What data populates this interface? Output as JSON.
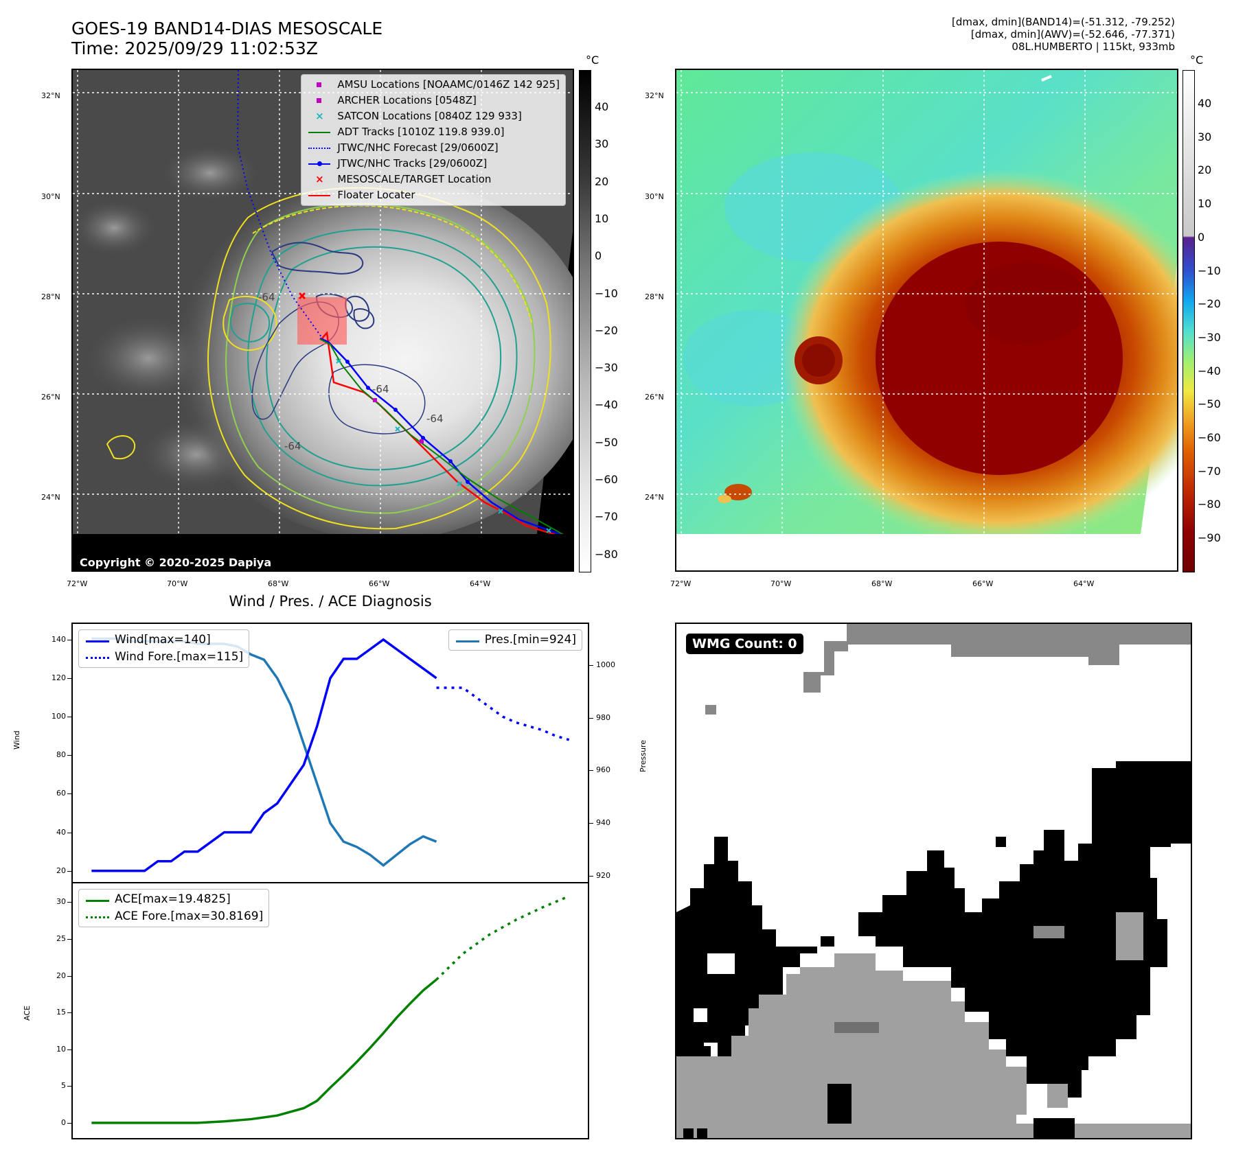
{
  "header": {
    "title_line1": "GOES-19 BAND14-DIAS MESOSCALE",
    "title_line2": "Time: 2025/09/29 11:02:53Z",
    "info_line1": "[dmax, dmin](BAND14)=(-51.312, -79.252)",
    "info_line2": "[dmax, dmin](AWV)=(-52.646, -77.371)",
    "info_line3": "08L.HUMBERTO | 115kt, 933mb"
  },
  "map": {
    "lat_labels": [
      "32°N",
      "30°N",
      "28°N",
      "26°N",
      "24°N"
    ],
    "lon_labels": [
      "72°W",
      "70°W",
      "68°W",
      "66°W",
      "64°W"
    ],
    "copyright": "Copyright © 2020-2025 Dapiya",
    "contour_labels": [
      "-64",
      "-64",
      "-64",
      "-64"
    ]
  },
  "legend": {
    "items": [
      {
        "label": "AMSU Locations [NOAAMC/0146Z 142 925]",
        "symbol": "square",
        "color": "#c000c0"
      },
      {
        "label": "ARCHER Locations [0548Z]",
        "symbol": "square",
        "color": "#c000c0"
      },
      {
        "label": "SATCON Locations [0840Z 129 933]",
        "symbol": "x",
        "color": "#18b8b8"
      },
      {
        "label": "ADT Tracks [1010Z 119.8 939.0]",
        "symbol": "line",
        "color": "#008000"
      },
      {
        "label": "JTWC/NHC Forecast [29/0600Z]",
        "symbol": "dotted",
        "color": "#0000ff"
      },
      {
        "label": "JTWC/NHC Tracks [29/0600Z]",
        "symbol": "line-dot",
        "color": "#0000ff"
      },
      {
        "label": "MESOSCALE/TARGET Location",
        "symbol": "x",
        "color": "#ff0000"
      },
      {
        "label": "Floater Locater",
        "symbol": "line",
        "color": "#ff0000"
      }
    ]
  },
  "colorbar_gray": {
    "unit": "°C",
    "ticks": [
      "40",
      "30",
      "20",
      "10",
      "0",
      "−10",
      "−20",
      "−30",
      "−40",
      "−50",
      "−60",
      "−70",
      "−80"
    ]
  },
  "colorbar_color": {
    "unit": "°C",
    "ticks": [
      "40",
      "30",
      "20",
      "10",
      "0",
      "−10",
      "−20",
      "−30",
      "−40",
      "−50",
      "−60",
      "−70",
      "−80",
      "−90"
    ]
  },
  "diagnosis": {
    "title": "Wind / Pres. / ACE Diagnosis",
    "ylabel_wind": "Wind",
    "ylabel_pres": "Pressure",
    "ylabel_ace": "ACE",
    "legend_wind": "Wind[max=140]",
    "legend_wind_fore": "Wind Fore.[max=115]",
    "legend_pres": "Pres.[min=924]",
    "legend_ace": "ACE[max=19.4825]",
    "legend_ace_fore": "ACE Fore.[max=30.8169]"
  },
  "wmg": {
    "label": "WMG Count: 0"
  },
  "chart_data": [
    {
      "type": "line",
      "title": "Wind / Pres. / ACE Diagnosis",
      "ylabel": "Wind",
      "ylim": [
        16,
        146
      ],
      "xlim": [
        -1,
        37
      ],
      "yticks": [
        20,
        40,
        60,
        80,
        100,
        120,
        140
      ],
      "series": [
        {
          "name": "Wind[max=140]",
          "color": "#0000ff",
          "style": "solid",
          "x": [
            0,
            1,
            2,
            3,
            4,
            5,
            6,
            7,
            8,
            9,
            10,
            11,
            12,
            13,
            14,
            15,
            16,
            17,
            18,
            19,
            20,
            21,
            22,
            23,
            24,
            25,
            26
          ],
          "values": [
            20,
            20,
            20,
            20,
            20,
            25,
            25,
            30,
            30,
            35,
            40,
            40,
            40,
            50,
            55,
            65,
            75,
            95,
            120,
            130,
            130,
            135,
            140,
            135,
            130,
            125,
            120
          ]
        },
        {
          "name": "Wind Fore.[max=115]",
          "color": "#0000ff",
          "style": "dotted",
          "x": [
            26,
            27,
            28,
            29,
            30,
            31,
            32,
            33,
            34,
            35,
            36
          ],
          "values": [
            115,
            115,
            115,
            110,
            105,
            100,
            97,
            95,
            93,
            90,
            88
          ]
        }
      ]
    },
    {
      "type": "line",
      "ylabel": "Pressure",
      "ylim": [
        919,
        1014
      ],
      "xlim": [
        -1,
        37
      ],
      "yticks": [
        920,
        940,
        960,
        980,
        1000
      ],
      "series": [
        {
          "name": "Pres.[min=924]",
          "color": "#1f77b4",
          "style": "solid",
          "x": [
            0,
            1,
            2,
            3,
            4,
            5,
            6,
            7,
            8,
            9,
            10,
            11,
            12,
            13,
            14,
            15,
            16,
            17,
            18,
            19,
            20,
            21,
            22,
            23,
            24,
            25,
            26
          ],
          "values": [
            1010,
            1010,
            1010,
            1009,
            1009,
            1009,
            1009,
            1009,
            1008,
            1008,
            1008,
            1007,
            1004,
            1002,
            995,
            985,
            970,
            955,
            940,
            933,
            931,
            928,
            924,
            928,
            932,
            935,
            933
          ]
        }
      ]
    },
    {
      "type": "line",
      "ylabel": "ACE",
      "ylim": [
        -1.5,
        32
      ],
      "xlim": [
        -1,
        37
      ],
      "yticks": [
        0,
        5,
        10,
        15,
        20,
        25,
        30
      ],
      "series": [
        {
          "name": "ACE[max=19.4825]",
          "color": "#008000",
          "style": "solid",
          "x": [
            0,
            2,
            4,
            6,
            8,
            10,
            12,
            14,
            16,
            17,
            18,
            19,
            20,
            21,
            22,
            23,
            24,
            25,
            26
          ],
          "values": [
            0,
            0,
            0,
            0,
            0,
            0.2,
            0.5,
            1.0,
            2.0,
            3.0,
            4.8,
            6.5,
            8.3,
            10.2,
            12.2,
            14.3,
            16.2,
            18.0,
            19.48
          ]
        },
        {
          "name": "ACE Fore.[max=30.8169]",
          "color": "#008000",
          "style": "dotted",
          "x": [
            26,
            28,
            30,
            32,
            34,
            36
          ],
          "values": [
            19.48,
            23.0,
            25.6,
            27.6,
            29.3,
            30.82
          ]
        }
      ]
    }
  ]
}
